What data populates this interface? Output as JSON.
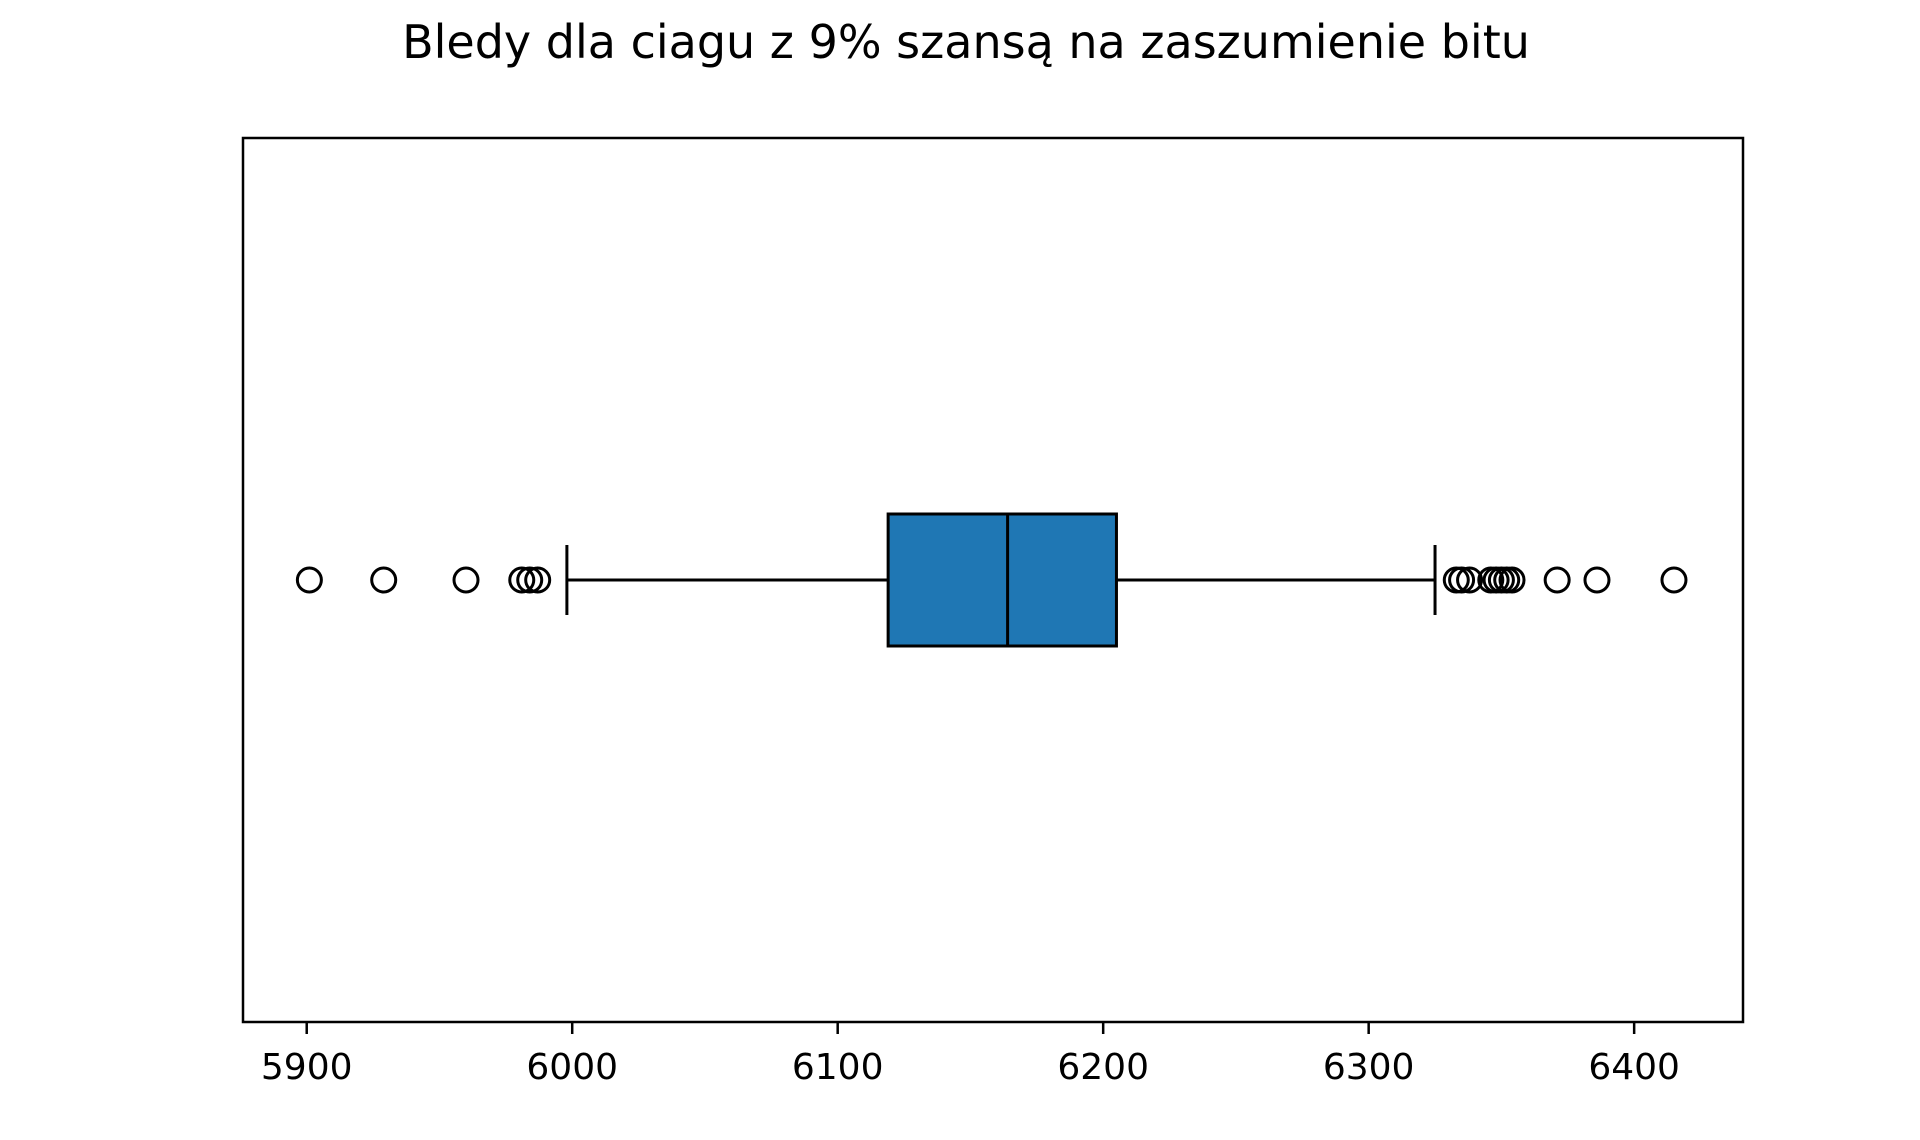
{
  "chart_data": {
    "type": "boxplot",
    "title": "Bledy dla ciagu z 9% szansą na zaszumienie bitu",
    "xlabel": "",
    "ylabel": "",
    "orientation": "horizontal",
    "xlim": [
      5876,
      6441
    ],
    "x_ticks": [
      5900,
      6000,
      6100,
      6200,
      6300,
      6400
    ],
    "box": {
      "whisker_low": 5998,
      "q1": 6119,
      "median": 6164,
      "q3": 6205,
      "whisker_high": 6325
    },
    "outliers": [
      5901,
      5929,
      5960,
      5981,
      5984,
      5987,
      6333,
      6335,
      6338,
      6346,
      6348,
      6350,
      6352,
      6354,
      6371,
      6386,
      6415
    ],
    "colors": {
      "box_fill": "#1f77b4",
      "line": "#000000"
    },
    "grid": false
  }
}
